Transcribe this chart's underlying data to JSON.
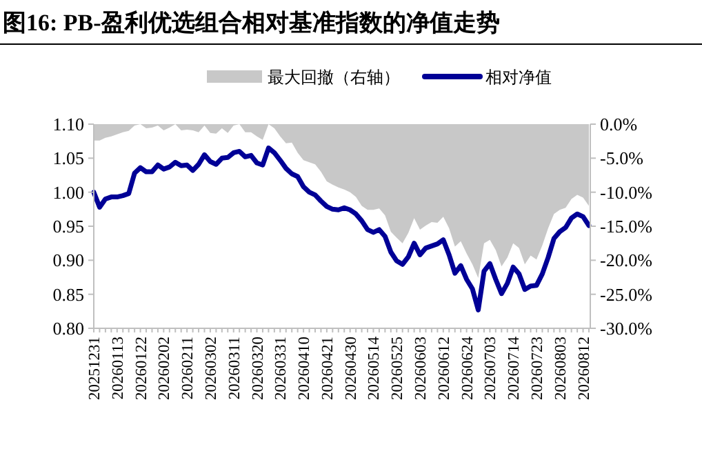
{
  "chart_data": {
    "type": "line",
    "title": "图16:  PB-盈利优选组合相对基准指数的净值走势",
    "categories": [
      "20251231",
      null,
      null,
      null,
      "20260113",
      null,
      null,
      null,
      "20260122",
      null,
      null,
      null,
      "20260202",
      null,
      null,
      null,
      "20260211",
      null,
      null,
      null,
      "20260302",
      null,
      null,
      null,
      "20260311",
      null,
      null,
      null,
      "20260320",
      null,
      null,
      null,
      "20260331",
      null,
      null,
      null,
      "20260410",
      null,
      null,
      null,
      "20260421",
      null,
      null,
      null,
      "20260430",
      null,
      null,
      null,
      "20260514",
      null,
      null,
      null,
      "20260525",
      null,
      null,
      null,
      "20260603",
      null,
      null,
      null,
      "20260612",
      null,
      null,
      null,
      "20260624",
      null,
      null,
      null,
      "20260703",
      null,
      null,
      null,
      "20260714",
      null,
      null,
      null,
      "20260723",
      null,
      null,
      null,
      "20260803",
      null,
      null,
      null,
      "20260812",
      null
    ],
    "series": [
      {
        "name": "最大回撤（右轴）",
        "type": "area",
        "axis": "y2",
        "color": "#c8c8c8",
        "values": [
          -2.4,
          -2.4,
          -2.0,
          -1.8,
          -1.5,
          -1.2,
          -1.0,
          -0.2,
          0,
          -0.6,
          -0.5,
          -0.2,
          -0.9,
          -0.5,
          0,
          -0.9,
          -0.8,
          -0.9,
          -1.2,
          -0.2,
          -1.3,
          -1.4,
          -0.6,
          -1.3,
          -0.2,
          0,
          -1.2,
          -1.2,
          -1.8,
          -2.3,
          0,
          -0.6,
          -1.8,
          -2.8,
          -2.7,
          -4.2,
          -5.3,
          -5.6,
          -5.9,
          -7.0,
          -8.4,
          -8.9,
          -9.3,
          -9.6,
          -10.0,
          -10.7,
          -12.0,
          -12.6,
          -12.6,
          -12.4,
          -13.4,
          -15.8,
          -16.7,
          -17.5,
          -16.0,
          -13.8,
          -15.5,
          -14.9,
          -14.4,
          -14.5,
          -13.6,
          -15.3,
          -18.0,
          -17.2,
          -19.0,
          -20.6,
          -22.6,
          -17.5,
          -17.0,
          -18.5,
          -20.9,
          -19.6,
          -17.5,
          -18.2,
          -20.6,
          -19.3,
          -19.9,
          -17.8,
          -15.3,
          -13.2,
          -12.6,
          -12.3,
          -11.0,
          -10.4,
          -10.8,
          -12.0
        ]
      },
      {
        "name": "相对净值",
        "type": "line",
        "color": "#000096",
        "values": [
          1.0,
          0.978,
          0.99,
          0.993,
          0.993,
          0.995,
          0.998,
          1.028,
          1.036,
          1.03,
          1.03,
          1.04,
          1.034,
          1.037,
          1.044,
          1.039,
          1.04,
          1.032,
          1.041,
          1.055,
          1.045,
          1.041,
          1.05,
          1.051,
          1.058,
          1.06,
          1.052,
          1.054,
          1.043,
          1.04,
          1.065,
          1.058,
          1.047,
          1.035,
          1.027,
          1.023,
          1.008,
          1.0,
          0.996,
          0.987,
          0.979,
          0.975,
          0.974,
          0.977,
          0.974,
          0.968,
          0.958,
          0.945,
          0.941,
          0.945,
          0.935,
          0.912,
          0.899,
          0.894,
          0.905,
          0.925,
          0.908,
          0.918,
          0.921,
          0.924,
          0.93,
          0.908,
          0.881,
          0.892,
          0.872,
          0.858,
          0.827,
          0.884,
          0.895,
          0.872,
          0.851,
          0.866,
          0.89,
          0.88,
          0.857,
          0.862,
          0.863,
          0.88,
          0.904,
          0.932,
          0.942,
          0.948,
          0.962,
          0.968,
          0.964,
          0.951
        ]
      }
    ],
    "ylim": [
      0.8,
      1.1
    ],
    "yticks": [
      {
        "value": 0.8,
        "label": "0.80"
      },
      0.85,
      {
        "value": 0.9,
        "label": "0.90"
      },
      0.95,
      {
        "value": 1.0,
        "label": "1.00"
      },
      1.05,
      {
        "value": 1.1,
        "label": "1.10"
      }
    ],
    "y2lim": [
      -30,
      0
    ],
    "y2ticks": [
      {
        "value": -30,
        "label": "-30.0%"
      },
      {
        "value": -25,
        "label": "-25.0%"
      },
      {
        "value": -20,
        "label": "-20.0%"
      },
      {
        "value": -15,
        "label": "-15.0%"
      },
      {
        "value": -10,
        "label": "-10.0%"
      },
      {
        "value": -5,
        "label": "-5.0%"
      },
      {
        "value": 0,
        "label": "0.0%"
      }
    ],
    "legend": "top"
  }
}
